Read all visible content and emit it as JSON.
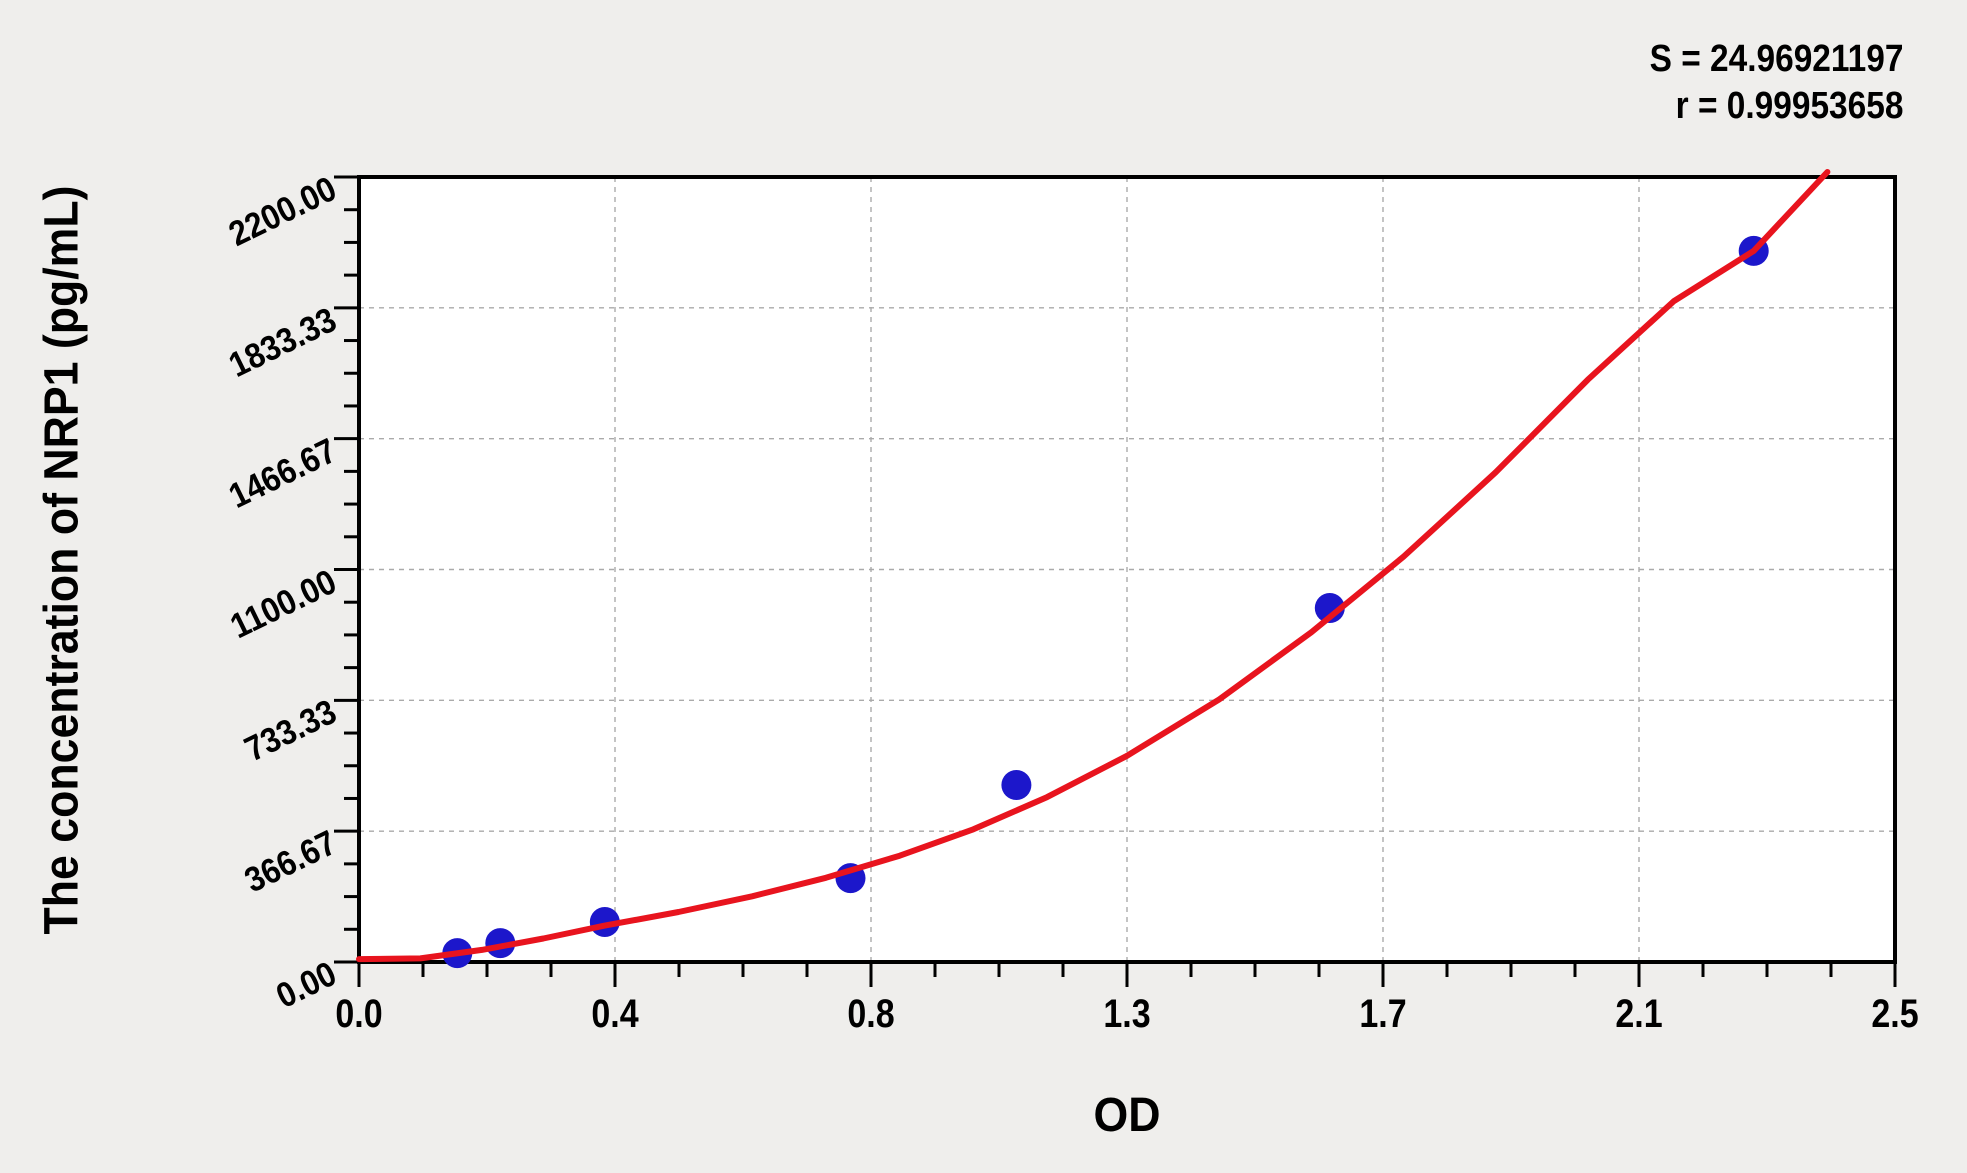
{
  "stats": {
    "s_line": "S = 24.96921197",
    "r_line": "r = 0.99953658"
  },
  "chart_data": {
    "type": "scatter",
    "title": "",
    "xlabel": "OD",
    "ylabel": "The concentration of NRP1 (pg/mL)",
    "xlim": [
      0,
      2.5
    ],
    "ylim": [
      0,
      2200
    ],
    "x_tick_labels": [
      "0.0",
      "0.4",
      "0.8",
      "1.3",
      "1.7",
      "2.1",
      "2.5"
    ],
    "y_tick_labels": [
      "0.00",
      "366.67",
      "733.33",
      "1100.00",
      "1466.67",
      "1833.33",
      "2200.00"
    ],
    "minor_ticks_per_major": 4,
    "grid": "dashed-major",
    "legend_position": "none",
    "annotations": [
      "S = 24.96921197",
      "r = 0.99953658"
    ],
    "series": [
      {
        "name": "standard-points",
        "type": "scatter",
        "color": "#1c17cb",
        "points": [
          [
            0.16,
            25
          ],
          [
            0.23,
            53
          ],
          [
            0.4,
            112
          ],
          [
            0.8,
            235
          ],
          [
            1.07,
            496
          ],
          [
            1.58,
            992
          ],
          [
            2.27,
            1993
          ]
        ]
      },
      {
        "name": "fitted-curve",
        "type": "line",
        "color": "#e8141e",
        "points": [
          [
            0.0,
            8
          ],
          [
            0.1,
            10
          ],
          [
            0.2,
            34
          ],
          [
            0.3,
            66
          ],
          [
            0.4,
            102
          ],
          [
            0.52,
            140
          ],
          [
            0.64,
            184
          ],
          [
            0.76,
            236
          ],
          [
            0.88,
            298
          ],
          [
            1.0,
            372
          ],
          [
            1.12,
            462
          ],
          [
            1.25,
            578
          ],
          [
            1.4,
            736
          ],
          [
            1.55,
            924
          ],
          [
            1.7,
            1136
          ],
          [
            1.85,
            1372
          ],
          [
            2.0,
            1632
          ],
          [
            2.14,
            1852
          ],
          [
            2.27,
            1993
          ],
          [
            2.39,
            2214
          ]
        ]
      }
    ]
  },
  "colors": {
    "background": "#efeeec",
    "plot_background": "#ffffff",
    "axis": "#000000",
    "grid": "#aaaaaa",
    "curve": "#e8141e",
    "points": "#1c17cb"
  }
}
